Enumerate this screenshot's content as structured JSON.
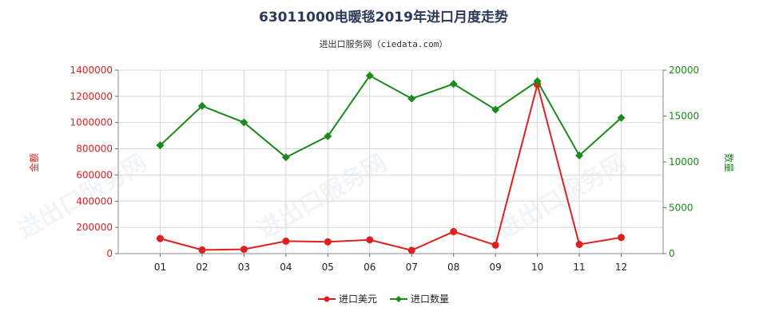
{
  "chart_data": {
    "type": "line",
    "title": "63011000电暖毯2019年进口月度走势",
    "subtitle": "进出口服务网（ciedata.com）",
    "categories": [
      "01",
      "02",
      "03",
      "04",
      "05",
      "06",
      "07",
      "08",
      "09",
      "10",
      "11",
      "12"
    ],
    "left_axis": {
      "label": "金额",
      "ylim": [
        0,
        1400000
      ],
      "ticks": [
        "0",
        "200000",
        "400000",
        "600000",
        "800000",
        "1000000",
        "1200000",
        "1400000"
      ],
      "color": "#e02020"
    },
    "right_axis": {
      "label": "数量",
      "ylim": [
        0,
        20000
      ],
      "ticks": [
        "0",
        "5000",
        "10000",
        "15000",
        "20000"
      ],
      "color": "#1a8a1a"
    },
    "series": [
      {
        "name": "进口美元",
        "axis": "left",
        "color": "#e02020",
        "values": [
          115000,
          28000,
          33000,
          95000,
          90000,
          105000,
          25000,
          168000,
          65000,
          1290000,
          70000,
          123000
        ]
      },
      {
        "name": "进口数量",
        "axis": "right",
        "color": "#1a8a1a",
        "values": [
          11800,
          16100,
          14300,
          10500,
          12800,
          19400,
          16900,
          18500,
          15700,
          18800,
          10700,
          14800
        ]
      }
    ],
    "grid": true,
    "legend_position": "bottom"
  }
}
